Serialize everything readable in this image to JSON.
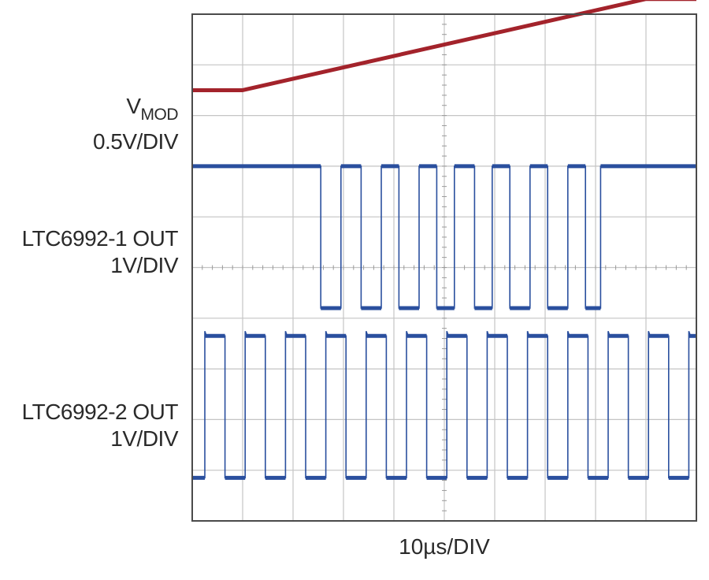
{
  "chart_data": {
    "type": "line",
    "title": "",
    "xlabel": "10µs/DIV",
    "ylabel": "",
    "grid": true,
    "divisions": {
      "x": 10,
      "y": 10
    },
    "xlim_div": [
      0,
      10
    ],
    "ylim_div": [
      0,
      10
    ],
    "traces": {
      "vmod": {
        "label_main": "V",
        "label_sub": "MOD",
        "scale": "0.5V/DIV",
        "color": "#a3232b",
        "points_div": [
          [
            0,
            8.5
          ],
          [
            1,
            8.5
          ],
          [
            9,
            10.3
          ],
          [
            10,
            10.3
          ]
        ]
      },
      "ltc6992_1": {
        "label": "LTC6992-1 OUT",
        "scale": "1V/DIV",
        "color": "#2a4f9e",
        "low_div": 4.2,
        "high_div": 7.0,
        "edges_div": [
          2.55,
          2.95,
          3.35,
          3.75,
          4.1,
          4.5,
          4.85,
          5.2,
          5.6,
          5.95,
          6.3,
          6.7,
          7.05,
          7.45,
          7.8,
          8.1
        ],
        "final_state": "high"
      },
      "ltc6992_2": {
        "label": "LTC6992-2 OUT",
        "scale": "1V/DIV",
        "color": "#2a4f9e",
        "low_div": 0.85,
        "high_div": 3.65,
        "edges_div": [
          0.25,
          0.65,
          1.05,
          1.45,
          1.85,
          2.25,
          2.65,
          3.05,
          3.45,
          3.85,
          4.25,
          4.65,
          5.05,
          5.45,
          5.85,
          6.25,
          6.65,
          7.05,
          7.45,
          7.85,
          8.25,
          8.65,
          9.05,
          9.45,
          9.85
        ],
        "final_state": "high"
      }
    }
  }
}
